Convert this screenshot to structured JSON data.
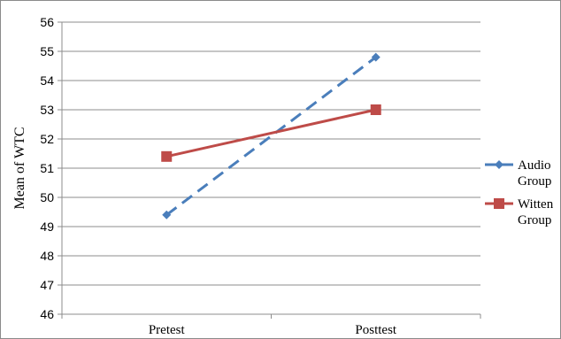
{
  "chart_data": {
    "type": "line",
    "title": "",
    "xlabel": "",
    "ylabel": "Mean of WTC",
    "categories": [
      "Pretest",
      "Posttest"
    ],
    "ylim": [
      46,
      56
    ],
    "yticks": [
      46,
      47,
      48,
      49,
      50,
      51,
      52,
      53,
      54,
      55,
      56
    ],
    "grid": true,
    "legend_position": "right",
    "series": [
      {
        "name": "Audio Group",
        "name_lines": [
          "Audio",
          "Group"
        ],
        "values": [
          49.4,
          54.8
        ],
        "color": "#4a7ebb",
        "marker": "diamond",
        "dash": true
      },
      {
        "name": "Witten Group",
        "name_lines": [
          "Witten",
          "Group"
        ],
        "values": [
          51.4,
          53.0
        ],
        "color": "#be4b48",
        "marker": "square",
        "dash": false
      }
    ]
  }
}
